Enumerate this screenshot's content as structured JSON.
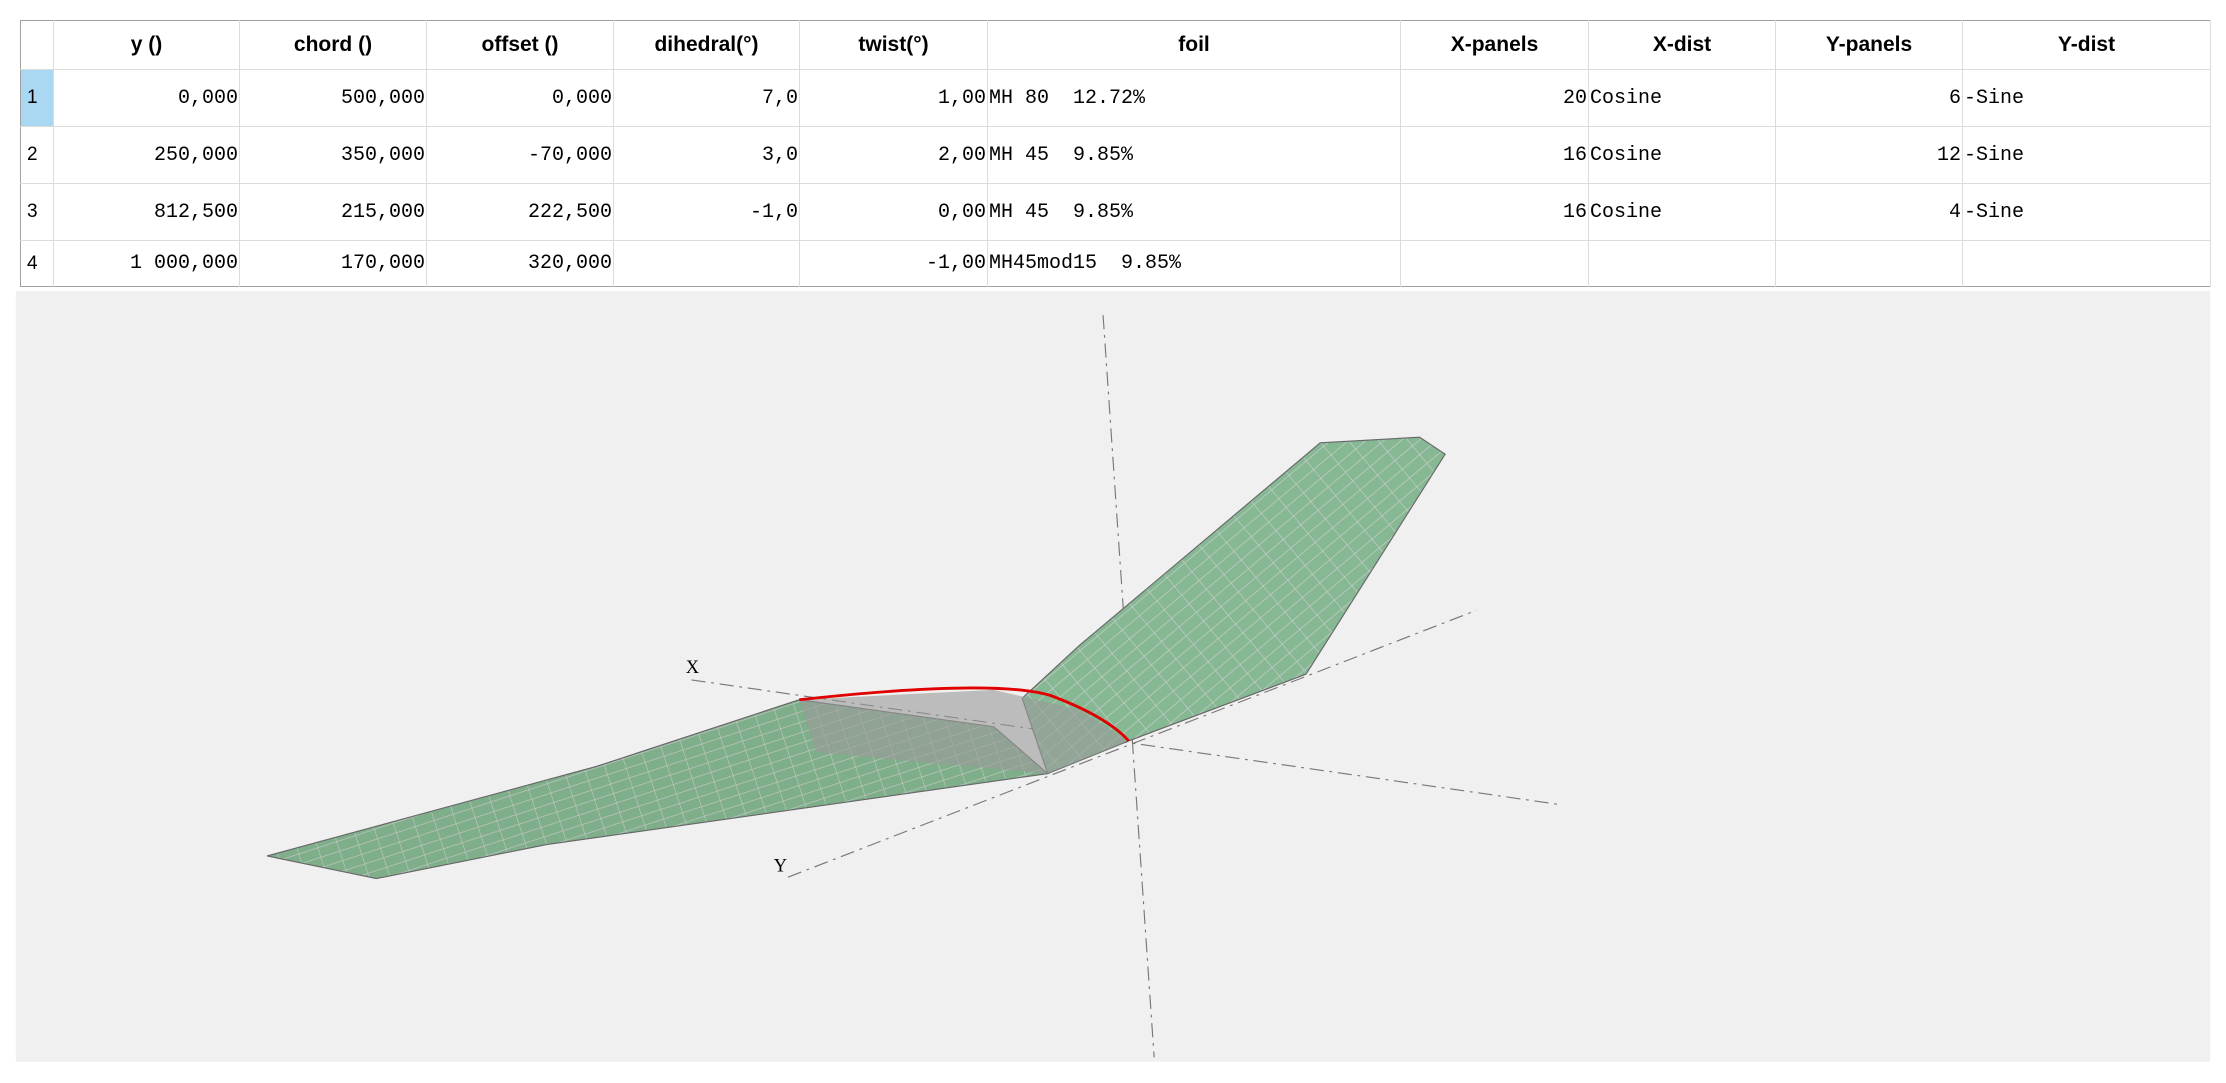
{
  "table": {
    "columns": [
      "y ()",
      "chord ()",
      "offset ()",
      "dihedral(°)",
      "twist(°)",
      "foil",
      "X-panels",
      "X-dist",
      "Y-panels",
      "Y-dist"
    ],
    "rows": [
      {
        "index": "1",
        "cells": [
          "0,000",
          "500,000",
          "0,000",
          "7,0",
          "1,00",
          "MH 80  12.72%",
          "20",
          "Cosine",
          "6",
          "-Sine"
        ]
      },
      {
        "index": "2",
        "cells": [
          "250,000",
          "350,000",
          "-70,000",
          "3,0",
          "2,00",
          "MH 45  9.85%",
          "16",
          "Cosine",
          "12",
          "-Sine"
        ]
      },
      {
        "index": "3",
        "cells": [
          "812,500",
          "215,000",
          "222,500",
          "-1,0",
          "0,00",
          "MH 45  9.85%",
          "16",
          "Cosine",
          "4",
          "-Sine"
        ]
      },
      {
        "index": "4",
        "cells": [
          "1 000,000",
          "170,000",
          "320,000",
          null,
          "-1,00",
          "MH45mod15  9.85%",
          null,
          null,
          null,
          null
        ]
      }
    ]
  },
  "view": {
    "axis_x": "X",
    "axis_y": "Y"
  }
}
